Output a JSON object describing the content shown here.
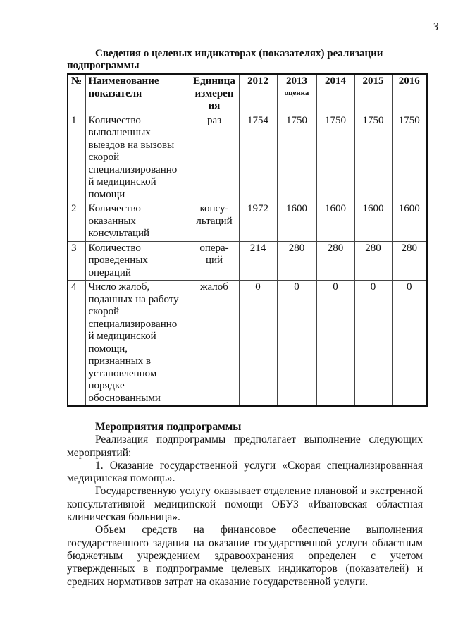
{
  "page_number": "3",
  "table_title": {
    "line1": "Сведения о целевых индикаторах (показателях) реализации",
    "line2": "подпрограммы"
  },
  "table": {
    "headers": {
      "num": "№",
      "name": "Наименование\nпоказателя",
      "unit": "Единица\nизмерен\nия",
      "y2012": "2012",
      "y2013": "2013",
      "y2013_note": "оценка",
      "y2014": "2014",
      "y2015": "2015",
      "y2016": "2016"
    },
    "rows": [
      {
        "num": "1",
        "name": "Количество\nвыполненных\nвыездов на вызовы\nскорой\nспециализированно\nй медицинской\nпомощи",
        "unit": "раз",
        "values": [
          "1754",
          "1750",
          "1750",
          "1750",
          "1750"
        ]
      },
      {
        "num": "2",
        "name": "Количество\nоказанных\nконсультаций",
        "unit": "консу-\nльтаций",
        "values": [
          "1972",
          "1600",
          "1600",
          "1600",
          "1600"
        ]
      },
      {
        "num": "3",
        "name": "Количество\nпроведенных\nопераций",
        "unit": "опера-\nций",
        "values": [
          "214",
          "280",
          "280",
          "280",
          "280"
        ]
      },
      {
        "num": "4",
        "name": "Число жалоб,\nподанных на работу\nскорой\nспециализированно\nй медицинской\nпомощи,\nпризнанных в\nустановленном\nпорядке\nобоснованными",
        "unit": "жалоб",
        "values": [
          "0",
          "0",
          "0",
          "0",
          "0"
        ]
      }
    ]
  },
  "section": {
    "heading": "Мероприятия подпрограммы",
    "paragraphs": [
      "Реализация подпрограммы предполагает выполнение следующих мероприятий:",
      "1. Оказание государственной услуги «Скорая специализированная медицинская помощь».",
      "Государственную услугу оказывает отделение плановой и экстренной консультативной медицинской помощи ОБУЗ «Ивановская областная клиническая больница».",
      "Объем средств на финансовое обеспечение выполнения государственного задания на оказание государственной услуги областным бюджетным учреждением здравоохранения определен с учетом утвержденных в подпрограмме целевых индикаторов (показателей) и средних нормативов затрат на оказание государственной услуги."
    ]
  }
}
